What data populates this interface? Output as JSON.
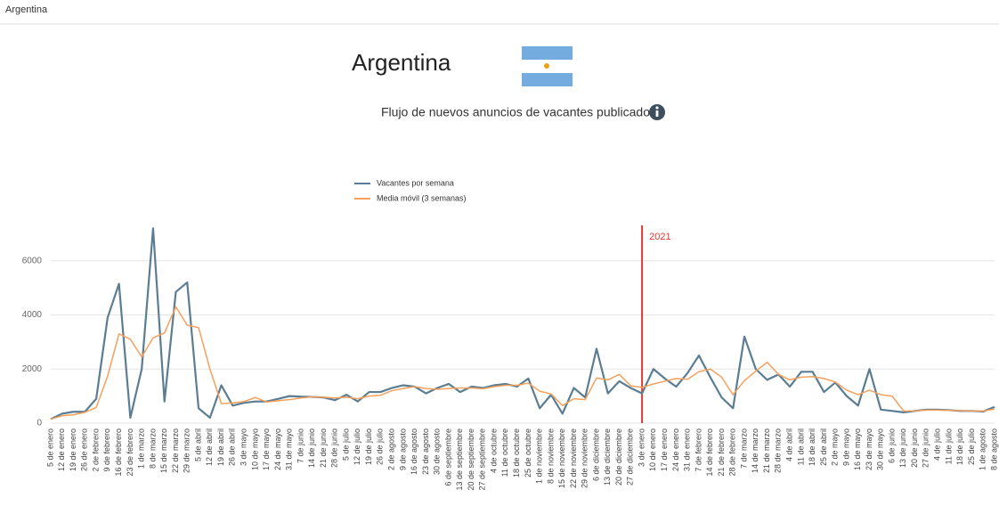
{
  "page_header": "Argentina",
  "chart_data": {
    "type": "line",
    "title": "Argentina",
    "subtitle": "Flujo de nuevos anuncios de vacantes publicados",
    "categories": [
      "5 de enero",
      "12 de enero",
      "19 de enero",
      "26 de enero",
      "2 de febrero",
      "9 de febrero",
      "16 de febrero",
      "23 de febrero",
      "1 de marzo",
      "8 de marzo",
      "15 de marzo",
      "22 de marzo",
      "29 de marzo",
      "5 de abril",
      "12 de abril",
      "19 de abril",
      "26 de abril",
      "3 de mayo",
      "10 de mayo",
      "17 de mayo",
      "24 de mayo",
      "31 de mayo",
      "7 de junio",
      "14 de junio",
      "21 de junio",
      "28 de junio",
      "5 de julio",
      "12 de julio",
      "19 de julio",
      "26 de julio",
      "2 de agosto",
      "9 de agosto",
      "16 de agosto",
      "23 de agosto",
      "30 de agosto",
      "6 de septiembre",
      "13 de septiembre",
      "20 de septiembre",
      "27 de septiembre",
      "4 de octubre",
      "11 de octubre",
      "18 de octubre",
      "25 de octubre",
      "1 de noviembre",
      "8 de noviembre",
      "15 de noviembre",
      "22 de noviembre",
      "29 de noviembre",
      "6 de diciembre",
      "13 de diciembre",
      "20 de diciembre",
      "27 de diciembre",
      "3 de enero",
      "10 de enero",
      "17 de enero",
      "24 de enero",
      "31 de enero",
      "7 de febrero",
      "14 de febrero",
      "21 de febrero",
      "28 de febrero",
      "7 de marzo",
      "14 de marzo",
      "21 de marzo",
      "28 de marzo",
      "4 de abril",
      "11 de abril",
      "18 de abril",
      "25 de abril",
      "2 de mayo",
      "9 de mayo",
      "16 de mayo",
      "23 de mayo",
      "30 de mayo",
      "6 de junio",
      "13 de junio",
      "20 de junio",
      "27 de junio",
      "4 de julio",
      "11 de julio",
      "18 de julio",
      "25 de julio",
      "1 de agosto",
      "8 de agosto"
    ],
    "series": [
      {
        "name": "Vacantes por semana",
        "color": "#5b7d93",
        "values": [
          150,
          350,
          420,
          420,
          900,
          3900,
          5150,
          200,
          2000,
          7200,
          800,
          4850,
          5200,
          550,
          200,
          1400,
          650,
          750,
          800,
          800,
          900,
          1000,
          980,
          970,
          950,
          850,
          1050,
          800,
          1150,
          1150,
          1300,
          1400,
          1350,
          1100,
          1300,
          1450,
          1150,
          1350,
          1300,
          1400,
          1450,
          1350,
          1650,
          550,
          1050,
          350,
          1300,
          950,
          2750,
          1100,
          1550,
          1300,
          1100,
          2000,
          1650,
          1350,
          1850,
          2500,
          1700,
          950,
          550,
          3200,
          2000,
          1600,
          1800,
          1350,
          1900,
          1900,
          1150,
          1500,
          1000,
          650,
          2000,
          500,
          450,
          400,
          450,
          500,
          500,
          480,
          450,
          450,
          430,
          600
        ]
      },
      {
        "name": "Media móvil (3 semanas)",
        "color": "#f5a05c",
        "values": [
          150,
          270,
          310,
          400,
          580,
          1740,
          3300,
          3100,
          2450,
          3150,
          3330,
          4300,
          3620,
          3530,
          2000,
          720,
          750,
          800,
          950,
          780,
          830,
          870,
          930,
          970,
          960,
          930,
          960,
          900,
          1000,
          1030,
          1200,
          1280,
          1350,
          1280,
          1250,
          1280,
          1300,
          1300,
          1270,
          1350,
          1400,
          1400,
          1480,
          1180,
          1080,
          650,
          900,
          870,
          1670,
          1600,
          1800,
          1380,
          1320,
          1450,
          1550,
          1650,
          1620,
          1900,
          2000,
          1700,
          1050,
          1570,
          1920,
          2250,
          1800,
          1600,
          1700,
          1720,
          1650,
          1520,
          1220,
          1050,
          1220,
          1050,
          1000,
          450,
          450,
          480,
          480,
          470,
          460,
          450,
          450,
          520
        ]
      }
    ],
    "ylim": [
      0,
      8000
    ],
    "yticks": [
      0,
      2000,
      4000,
      6000
    ],
    "grid": true,
    "plot_lines": [
      {
        "at": "3 de enero",
        "label": "2021",
        "color": "#e53935"
      }
    ]
  }
}
